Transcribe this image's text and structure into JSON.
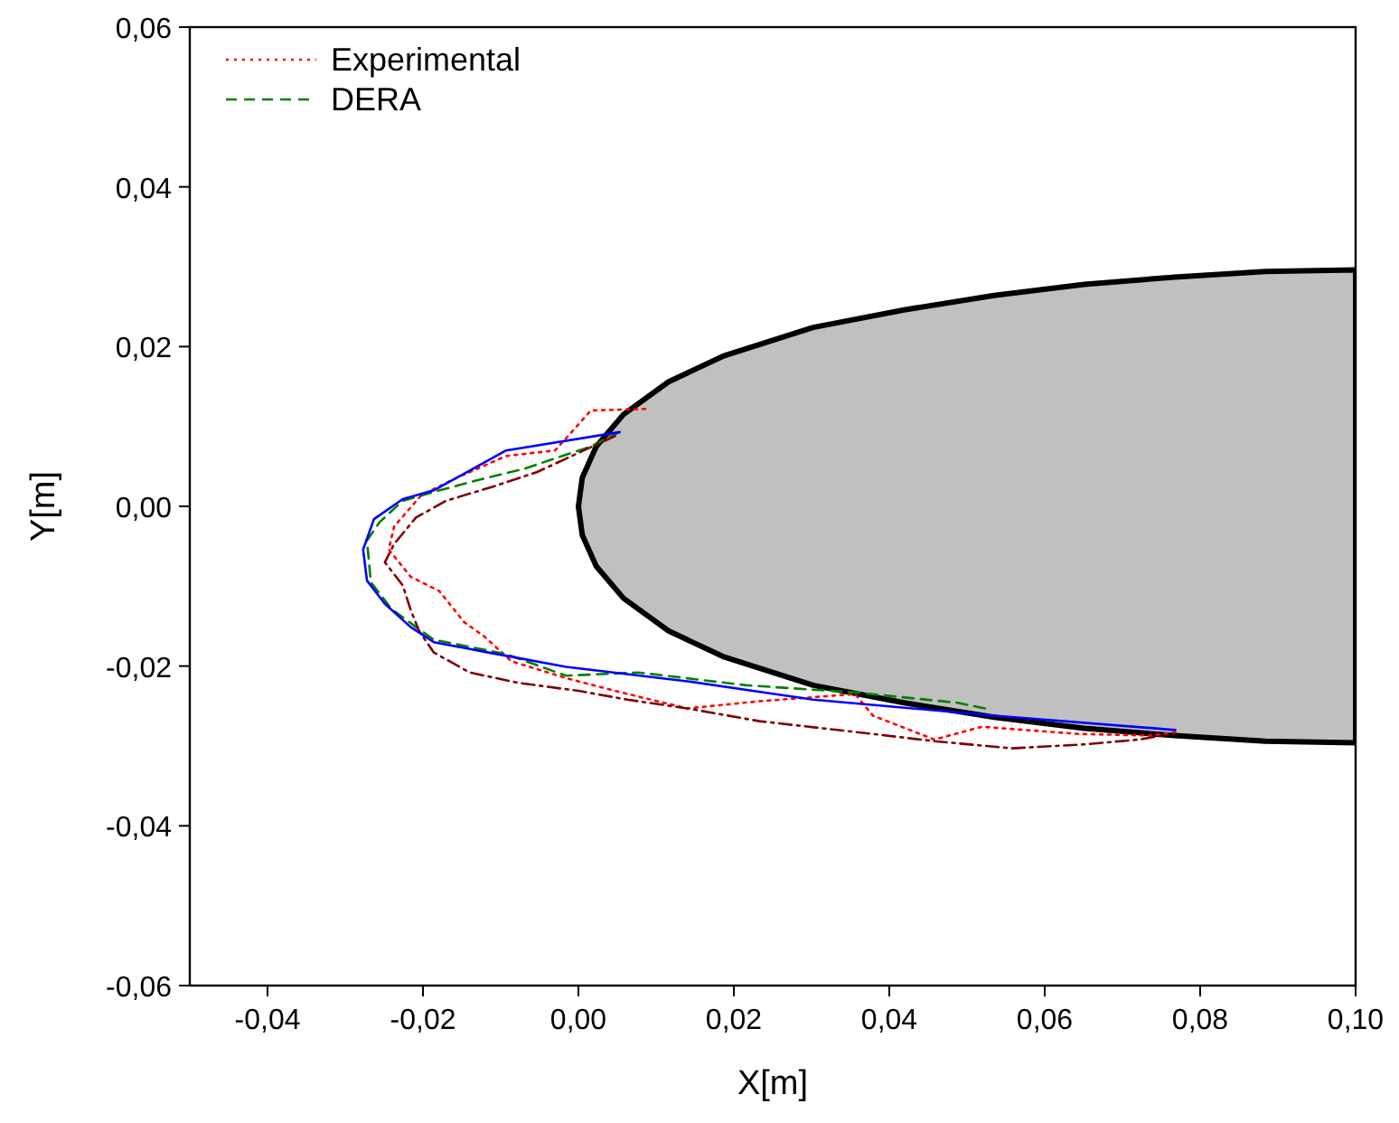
{
  "chart_data": {
    "type": "line",
    "xlabel": "X[m]",
    "ylabel": "Y[m]",
    "xlim": [
      -0.05,
      0.1
    ],
    "ylim": [
      -0.06,
      0.06
    ],
    "xticks": [
      {
        "value": -0.04,
        "label": "-0,04"
      },
      {
        "value": -0.02,
        "label": "-0,02"
      },
      {
        "value": 0,
        "label": "0,00"
      },
      {
        "value": 0.02,
        "label": "0,02"
      },
      {
        "value": 0.04,
        "label": "0,04"
      },
      {
        "value": 0.06,
        "label": "0,06"
      },
      {
        "value": 0.08,
        "label": "0,08"
      },
      {
        "value": 0.1,
        "label": "0,10"
      }
    ],
    "yticks": [
      {
        "value": -0.06,
        "label": "-0,06"
      },
      {
        "value": -0.04,
        "label": "-0,04"
      },
      {
        "value": -0.02,
        "label": "-0,02"
      },
      {
        "value": 0,
        "label": "0,00"
      },
      {
        "value": 0.02,
        "label": "0,02"
      },
      {
        "value": 0.04,
        "label": "0,04"
      },
      {
        "value": 0.06,
        "label": "0,06"
      }
    ],
    "grid": false,
    "legend": "top left",
    "series": [
      {
        "name": "Experimental",
        "color": "#ff0000",
        "line_style": "dotted",
        "x": [
          0.0086,
          0.0016,
          -0.0005,
          -0.003,
          -0.0093,
          -0.0156,
          -0.0202,
          -0.0237,
          -0.0244,
          -0.0216,
          -0.0179,
          -0.0147,
          -0.0121,
          -0.0086,
          -0.0016,
          0.0047,
          0.014,
          0.0233,
          0.0356,
          0.0379,
          0.0458,
          0.0519,
          0.0644,
          0.0737,
          0.0768
        ],
        "values": [
          0.0122,
          0.012,
          0.0097,
          0.007,
          0.0063,
          0.0036,
          0.0014,
          -0.0025,
          -0.0054,
          -0.0088,
          -0.0106,
          -0.0145,
          -0.0163,
          -0.0194,
          -0.0215,
          -0.0231,
          -0.0253,
          -0.0244,
          -0.0235,
          -0.0262,
          -0.0292,
          -0.0276,
          -0.0285,
          -0.0287,
          -0.0283
        ]
      },
      {
        "name": "DERA",
        "color": "#008000",
        "line_style": "dashed",
        "x": [
          0.0053,
          0.0016,
          -0.007,
          -0.0133,
          -0.0186,
          -0.0226,
          -0.0256,
          -0.0272,
          -0.0267,
          -0.024,
          -0.0209,
          -0.0186,
          -0.0093,
          -0.0016,
          0.0077,
          0.0216,
          0.0356,
          0.0488,
          0.0523
        ],
        "values": [
          0.0093,
          0.0075,
          0.0047,
          0.0032,
          0.0018,
          0.0007,
          -0.002,
          -0.0043,
          -0.0095,
          -0.0129,
          -0.0151,
          -0.0167,
          -0.0185,
          -0.0212,
          -0.0208,
          -0.0224,
          -0.0233,
          -0.0246,
          -0.0253
        ]
      },
      {
        "color": "#800000",
        "line_style": "dashdot",
        "x": [
          0.0047,
          -0.0053,
          -0.0109,
          -0.017,
          -0.0209,
          -0.0237,
          -0.0249,
          -0.0226,
          -0.0216,
          -0.0205,
          -0.0186,
          -0.014,
          -0.0077,
          0,
          0.0063,
          0.014,
          0.0233,
          0.0379,
          0.0458,
          0.0558,
          0.0651,
          0.0721,
          0.0751
        ],
        "values": [
          0.0088,
          0.0043,
          0.0025,
          0.0007,
          -0.0014,
          -0.0047,
          -0.007,
          -0.0099,
          -0.0129,
          -0.0156,
          -0.0183,
          -0.0208,
          -0.0221,
          -0.0231,
          -0.0242,
          -0.0253,
          -0.0269,
          -0.0285,
          -0.0294,
          -0.0303,
          -0.0298,
          -0.0292,
          -0.0287
        ]
      },
      {
        "color": "#0000ff",
        "line_style": "solid",
        "x": [
          0.0053,
          -0.0093,
          -0.0186,
          -0.0226,
          -0.0263,
          -0.0277,
          -0.0272,
          -0.0249,
          -0.0216,
          -0.0186,
          -0.0116,
          -0.0016,
          0.014,
          0.0302,
          0.0535,
          0.0768
        ],
        "values": [
          0.0093,
          0.007,
          0.002,
          0.0009,
          -0.0016,
          -0.0054,
          -0.0093,
          -0.0122,
          -0.0151,
          -0.017,
          -0.0183,
          -0.0201,
          -0.0219,
          -0.0242,
          -0.0262,
          -0.028
        ]
      },
      {
        "type": "area",
        "color": "#c0c0c0",
        "x": [
          0.1,
          0.0884,
          0.0767,
          0.0651,
          0.0535,
          0.0419,
          0.0302,
          0.0186,
          0.0116,
          0.0058,
          0.0023,
          0.0005,
          0,
          0.0005,
          0.0023,
          0.0058,
          0.0116,
          0.0186,
          0.0302,
          0.0419,
          0.0535,
          0.0651,
          0.0767,
          0.0884,
          0.1
        ],
        "values": [
          0.0296,
          0.0294,
          0.0287,
          0.0278,
          0.0264,
          0.0246,
          0.0224,
          0.0188,
          0.0156,
          0.0115,
          0.0075,
          0.0036,
          0,
          -0.0036,
          -0.0075,
          -0.0115,
          -0.0156,
          -0.0188,
          -0.0224,
          -0.0246,
          -0.0264,
          -0.0278,
          -0.0287,
          -0.0294,
          -0.0296
        ]
      }
    ]
  }
}
